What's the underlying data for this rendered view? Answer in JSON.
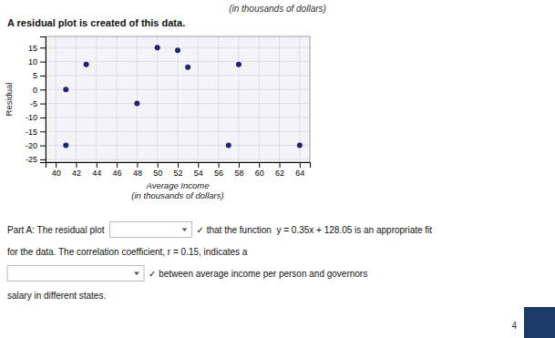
{
  "chart_data": {
    "type": "scatter",
    "title": "(in thousands of dollars)",
    "subtitle": "A residual plot is created of this data.",
    "x": [
      41,
      43,
      48,
      50,
      52,
      53,
      58,
      41,
      57,
      64
    ],
    "values": [
      -20,
      9,
      -5,
      15,
      14,
      8,
      9,
      0,
      -20,
      -20
    ],
    "color": "#22227a",
    "xlabel": "Average Income\n(in thousands of dollars)",
    "ylabel": "Residual",
    "xlim": [
      39,
      65
    ],
    "ylim": [
      -26,
      19
    ],
    "xticks": [
      40,
      42,
      44,
      46,
      48,
      50,
      52,
      54,
      56,
      58,
      60,
      62,
      64
    ],
    "yticks": [
      -25,
      -20,
      -15,
      -10,
      -5,
      0,
      5,
      10,
      15
    ],
    "grid": true,
    "annotations": [
      "Part A: The residual plot",
      "✓ that the function  y = 0.35x + 128.05 is an appropriate fit",
      "for the data. The correlation coefficient, r = 0.15, indicates a",
      "✓ between average income per person and governors",
      "salary in different states.",
      "4"
    ]
  }
}
